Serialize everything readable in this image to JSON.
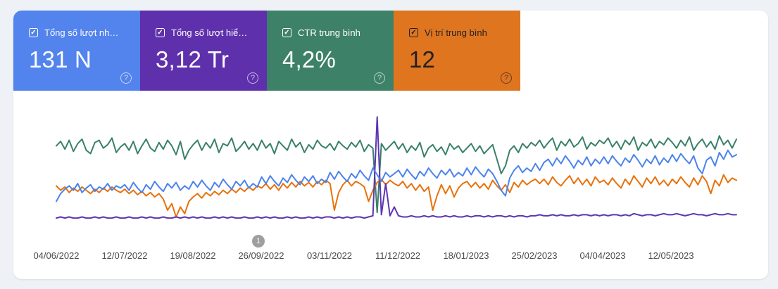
{
  "cards": [
    {
      "label": "Tổng số lượt nh…",
      "value": "131 N",
      "color": "#5383ec",
      "text_color": "#ffffff",
      "checked": true
    },
    {
      "label": "Tổng số lượt hiể…",
      "value": "3,12 Tr",
      "color": "#5e30ac",
      "text_color": "#ffffff",
      "checked": true
    },
    {
      "label": "CTR trung bình",
      "value": "4,2%",
      "color": "#3d8168",
      "text_color": "#ffffff",
      "checked": true
    },
    {
      "label": "Vị trí trung bình",
      "value": "12",
      "color": "#e0751f",
      "text_color": "#202124",
      "checked": true
    }
  ],
  "checkbox_glyph": "✓",
  "help_icon": "?",
  "annotation_badge": "1",
  "x_axis": [
    "04/06/2022",
    "12/07/2022",
    "19/08/2022",
    "26/09/2022",
    "03/11/2022",
    "11/12/2022",
    "18/01/2023",
    "25/02/2023",
    "04/04/2023",
    "12/05/2023"
  ],
  "chart_data": {
    "type": "line",
    "title": "Search performance over time (Google Search Console)",
    "x_tick_labels": [
      "04/06/2022",
      "12/07/2022",
      "19/08/2022",
      "26/09/2022",
      "03/11/2022",
      "11/12/2022",
      "18/01/2023",
      "25/02/2023",
      "04/04/2023",
      "12/05/2023"
    ],
    "ylim": [
      0,
      100
    ],
    "values_unit": "percent of plot height (visual estimate, no y-axis shown)",
    "grid": false,
    "legend_position": "metric tiles above chart act as legend",
    "annotations": [
      {
        "label": "1",
        "near_x_label": "26/09/2022"
      }
    ],
    "series": [
      {
        "id": "ctr",
        "name": "CTR trung bình",
        "color": "#39806b",
        "values": [
          70,
          74,
          67,
          75,
          65,
          72,
          76,
          66,
          63,
          73,
          75,
          68,
          71,
          77,
          64,
          69,
          72,
          66,
          74,
          63,
          70,
          76,
          68,
          65,
          73,
          67,
          75,
          70,
          62,
          74,
          58,
          66,
          71,
          75,
          66,
          73,
          68,
          76,
          64,
          72,
          70,
          77,
          65,
          69,
          74,
          67,
          72,
          66,
          75,
          68,
          72,
          63,
          74,
          70,
          66,
          76,
          69,
          73,
          64,
          71,
          67,
          75,
          70,
          68,
          72,
          66,
          74,
          70,
          67,
          73,
          69,
          75,
          65,
          71,
          68,
          10,
          72,
          66,
          70,
          74,
          67,
          72,
          64,
          70,
          66,
          73,
          60,
          68,
          71,
          65,
          69,
          62,
          72,
          67,
          70,
          64,
          68,
          72,
          65,
          70,
          63,
          67,
          71,
          58,
          45,
          52,
          66,
          70,
          64,
          72,
          68,
          73,
          70,
          75,
          68,
          73,
          77,
          66,
          74,
          70,
          76,
          69,
          72,
          78,
          67,
          73,
          70,
          75,
          72,
          77,
          69,
          74,
          67,
          75,
          71,
          78,
          66,
          73,
          70,
          76,
          68,
          74,
          71,
          77,
          73,
          68,
          75,
          70,
          78,
          66,
          72,
          76,
          69,
          74,
          67,
          79,
          71,
          75,
          68,
          76
        ]
      },
      {
        "id": "position",
        "name": "Vị trí trung bình",
        "color": "#e8710a",
        "values": [
          34,
          30,
          33,
          28,
          32,
          29,
          33,
          30,
          27,
          31,
          28,
          32,
          29,
          33,
          30,
          28,
          31,
          27,
          30,
          26,
          29,
          25,
          28,
          24,
          27,
          22,
          12,
          18,
          6,
          15,
          9,
          20,
          24,
          27,
          23,
          28,
          25,
          29,
          26,
          30,
          27,
          31,
          28,
          32,
          29,
          33,
          30,
          34,
          32,
          36,
          31,
          35,
          30,
          36,
          32,
          37,
          33,
          38,
          34,
          37,
          33,
          38,
          35,
          39,
          36,
          12,
          28,
          35,
          39,
          34,
          38,
          36,
          33,
          20,
          30,
          37,
          40,
          35,
          39,
          36,
          34,
          38,
          32,
          36,
          30,
          35,
          29,
          33,
          12,
          25,
          35,
          27,
          34,
          24,
          32,
          36,
          38,
          33,
          37,
          32,
          36,
          31,
          39,
          34,
          30,
          35,
          28,
          37,
          33,
          39,
          35,
          38,
          40,
          36,
          40,
          35,
          42,
          37,
          34,
          39,
          43,
          36,
          41,
          35,
          40,
          34,
          42,
          37,
          39,
          35,
          41,
          36,
          32,
          40,
          35,
          43,
          38,
          33,
          41,
          36,
          42,
          35,
          39,
          34,
          40,
          36,
          42,
          37,
          33,
          41,
          35,
          43,
          38,
          27,
          39,
          34,
          44,
          37,
          41,
          39
        ]
      },
      {
        "id": "impressions",
        "name": "Tổng số lượt hiển thị",
        "color": "#5e35b1",
        "values": [
          5,
          6,
          5,
          6,
          5,
          5,
          6,
          5,
          5,
          6,
          5,
          6,
          5,
          5,
          6,
          5,
          5,
          6,
          5,
          5,
          6,
          5,
          6,
          5,
          5,
          6,
          5,
          5,
          6,
          5,
          6,
          5,
          6,
          5,
          6,
          5,
          5,
          6,
          5,
          6,
          5,
          6,
          5,
          5,
          6,
          5,
          5,
          6,
          5,
          6,
          5,
          6,
          5,
          5,
          6,
          5,
          6,
          5,
          5,
          6,
          5,
          6,
          5,
          6,
          6,
          5,
          6,
          5,
          6,
          5,
          6,
          6,
          5,
          6,
          7,
          96,
          8,
          36,
          7,
          15,
          7,
          6,
          6,
          7,
          6,
          6,
          7,
          6,
          7,
          6,
          6,
          7,
          6,
          7,
          6,
          6,
          7,
          6,
          7,
          7,
          6,
          7,
          6,
          7,
          7,
          6,
          7,
          6,
          7,
          7,
          6,
          7,
          7,
          8,
          7,
          7,
          8,
          7,
          8,
          7,
          7,
          8,
          7,
          8,
          8,
          7,
          8,
          7,
          8,
          7,
          8,
          8,
          7,
          8,
          7,
          9,
          8,
          7,
          8,
          8,
          7,
          8,
          9,
          8,
          8,
          9,
          8,
          7,
          8,
          9,
          8,
          8,
          7,
          8,
          9,
          8,
          8,
          9,
          8,
          8
        ]
      },
      {
        "id": "clicks",
        "name": "Tổng số lượt nhấp",
        "color": "#4b83ec",
        "values": [
          20,
          27,
          31,
          34,
          30,
          36,
          28,
          32,
          35,
          29,
          33,
          31,
          36,
          30,
          34,
          32,
          35,
          30,
          37,
          32,
          28,
          35,
          31,
          38,
          33,
          29,
          36,
          32,
          37,
          30,
          34,
          31,
          38,
          33,
          39,
          34,
          30,
          37,
          33,
          40,
          35,
          31,
          38,
          34,
          39,
          32,
          36,
          33,
          42,
          36,
          43,
          38,
          34,
          41,
          37,
          44,
          39,
          35,
          42,
          38,
          43,
          36,
          40,
          37,
          46,
          40,
          47,
          42,
          38,
          45,
          41,
          48,
          43,
          39,
          50,
          44,
          38,
          46,
          42,
          45,
          48,
          42,
          49,
          44,
          40,
          47,
          43,
          50,
          45,
          41,
          48,
          44,
          49,
          42,
          46,
          43,
          50,
          44,
          51,
          46,
          42,
          49,
          45,
          38,
          30,
          25,
          41,
          48,
          52,
          46,
          50,
          47,
          54,
          48,
          55,
          58,
          52,
          59,
          54,
          61,
          56,
          50,
          57,
          53,
          60,
          52,
          58,
          54,
          60,
          54,
          61,
          56,
          52,
          59,
          55,
          62,
          57,
          51,
          58,
          54,
          61,
          53,
          59,
          55,
          62,
          56,
          63,
          58,
          54,
          61,
          50,
          45,
          57,
          60,
          52,
          64,
          58,
          66,
          60,
          62
        ]
      }
    ]
  }
}
